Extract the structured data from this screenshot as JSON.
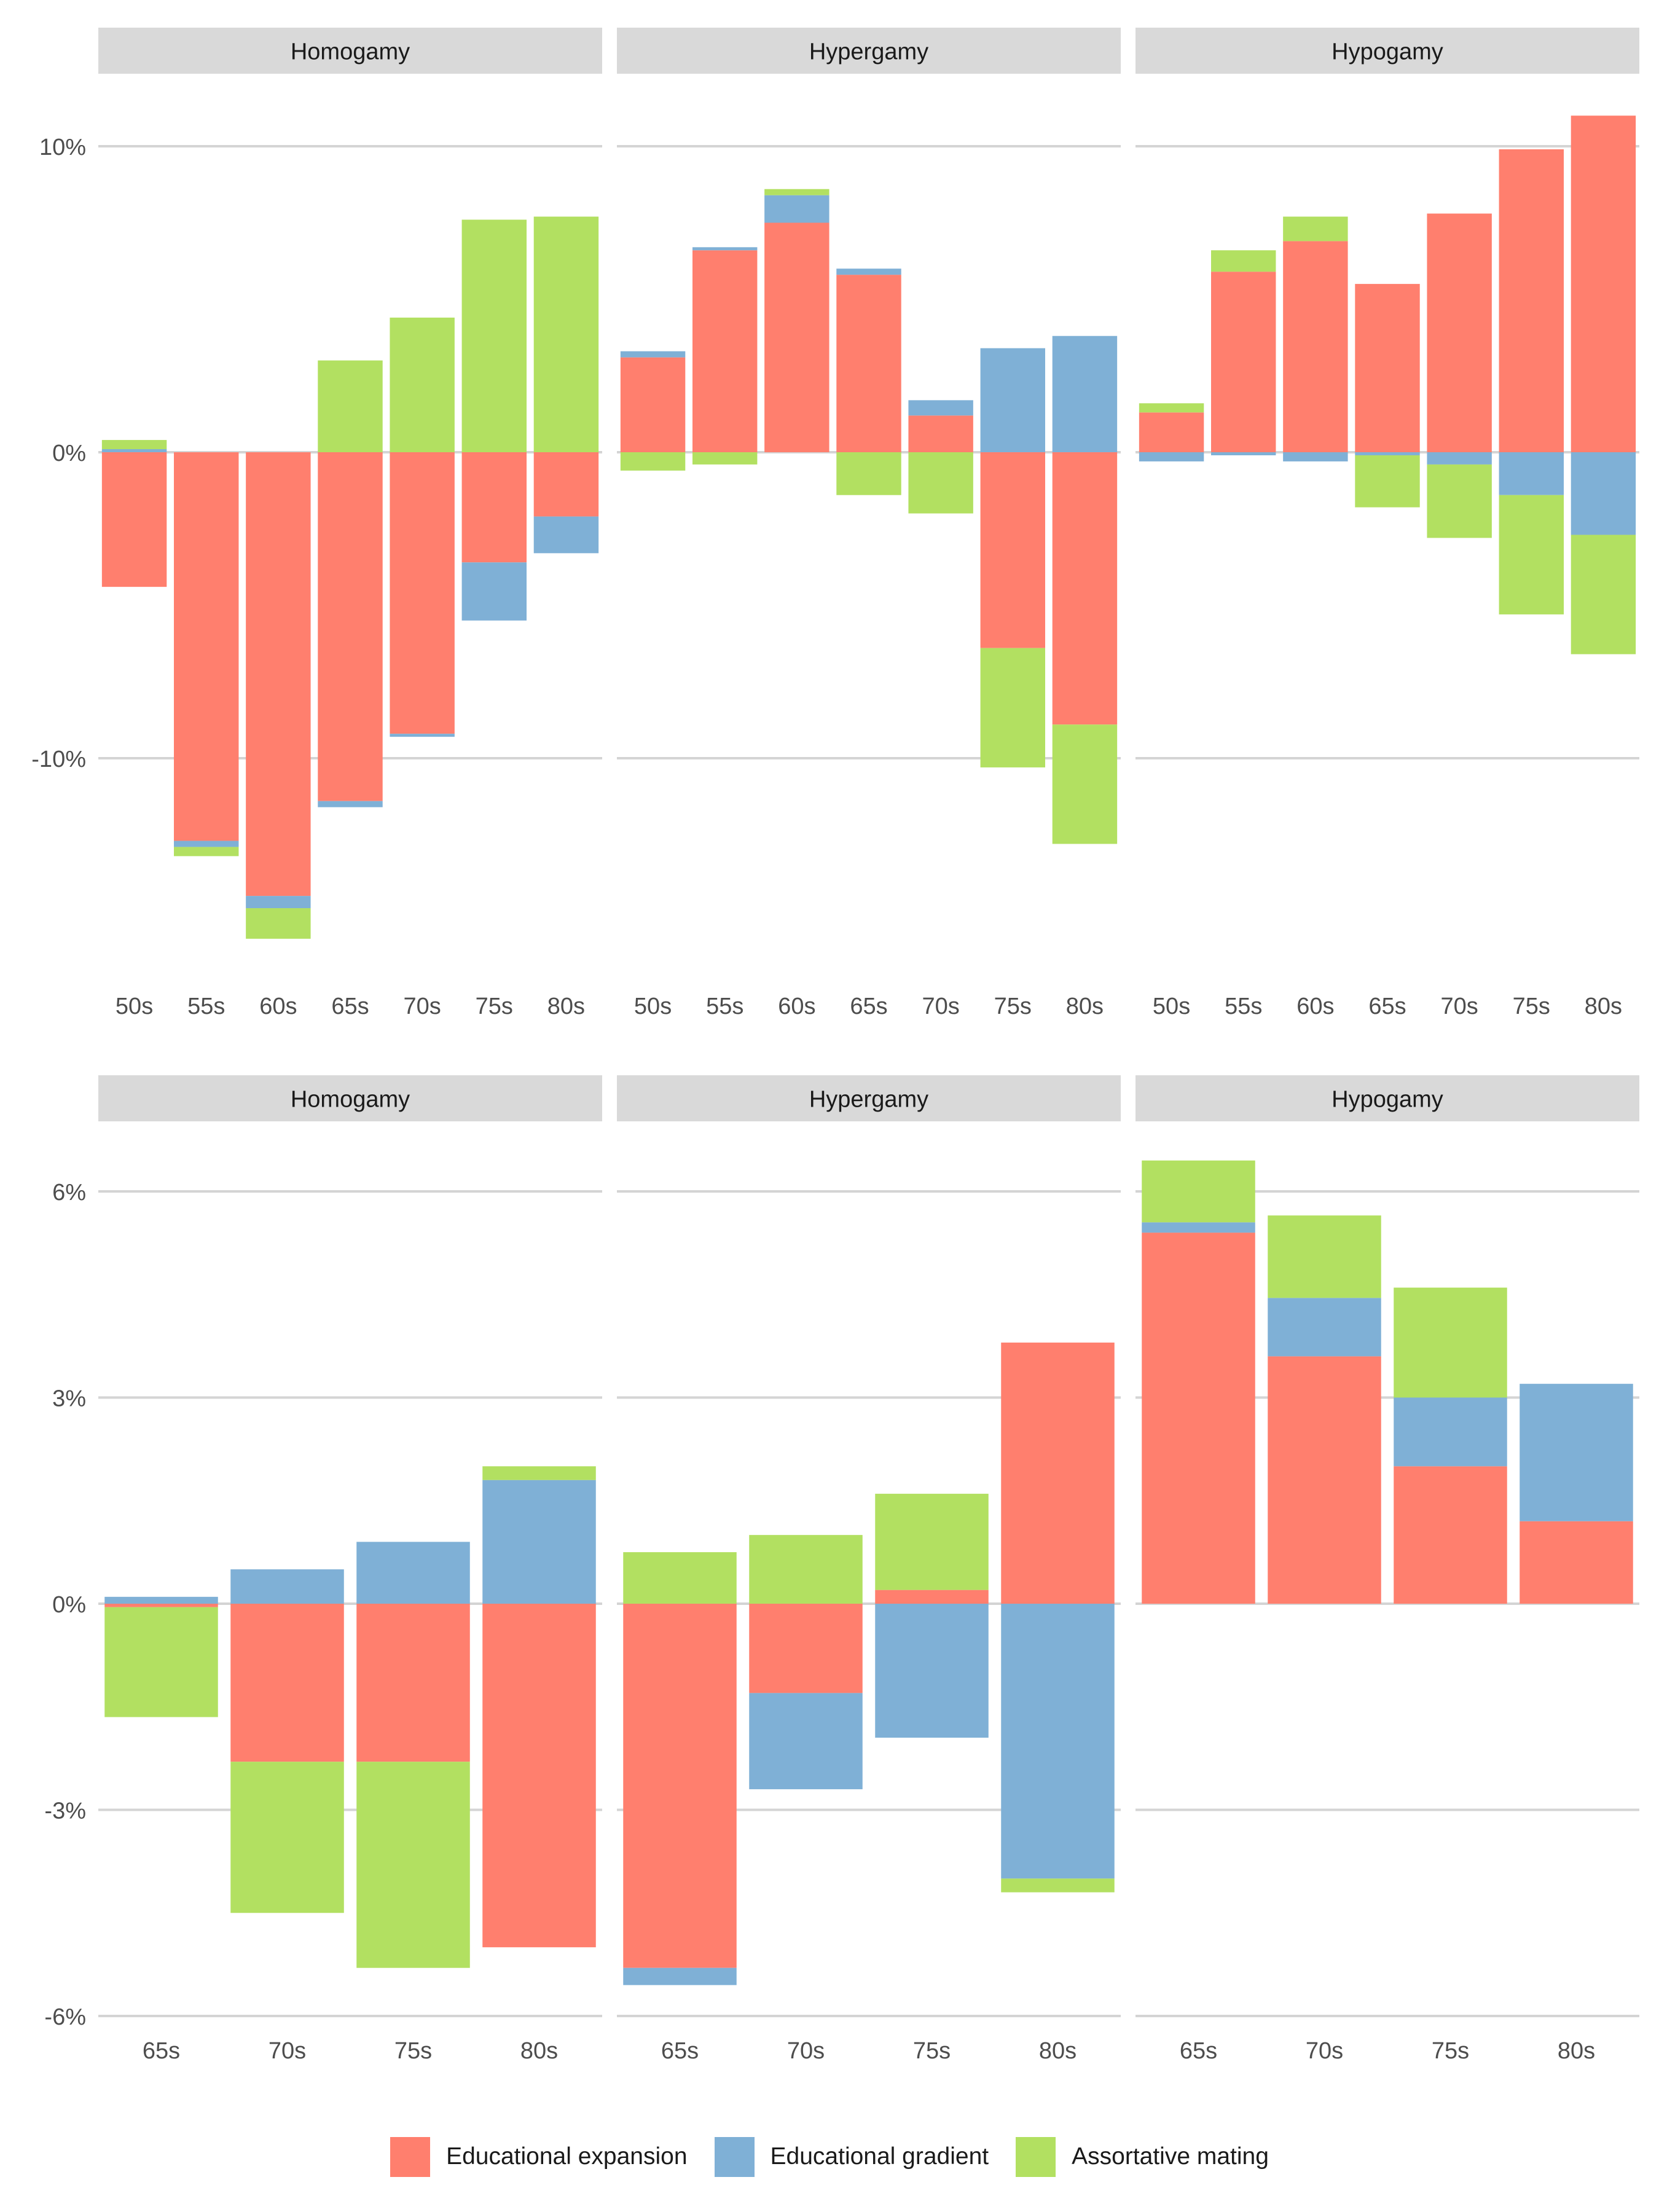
{
  "legend": {
    "items": [
      {
        "label": "Educational expansion",
        "color": "#FF7F6E"
      },
      {
        "label": "Educational gradient",
        "color": "#7FB0D6"
      },
      {
        "label": "Assortative mating",
        "color": "#B2E061"
      }
    ]
  },
  "chart_data": [
    {
      "type": "bar",
      "stacked": true,
      "facet": "top-row",
      "panels": [
        "Homogamy",
        "Hypergamy",
        "Hypogamy"
      ],
      "categories": [
        "50s",
        "55s",
        "60s",
        "65s",
        "70s",
        "75s",
        "80s"
      ],
      "yticks": [
        10,
        0,
        -10
      ],
      "ytick_labels": [
        "10%",
        "0%",
        "-10%"
      ],
      "ylim": [
        -17,
        12.5
      ],
      "unit": "%",
      "grid": true,
      "series_names": [
        "Educational expansion",
        "Educational gradient",
        "Assortative mating"
      ],
      "data": {
        "Homogamy": {
          "Educational expansion": [
            -4.4,
            -12.7,
            -14.5,
            -11.4,
            -9.2,
            -3.6,
            -2.1
          ],
          "Educational gradient": [
            0.1,
            -0.2,
            -0.4,
            -0.2,
            -0.1,
            -1.9,
            -1.2
          ],
          "Assortative mating": [
            0.3,
            -0.3,
            -1.0,
            3.0,
            4.4,
            7.6,
            7.7
          ]
        },
        "Hypergamy": {
          "Educational expansion": [
            3.1,
            6.6,
            7.5,
            5.8,
            1.2,
            -6.4,
            -8.9
          ],
          "Educational gradient": [
            0.2,
            0.1,
            0.9,
            0.2,
            0.5,
            3.4,
            3.8
          ],
          "Assortative mating": [
            -0.6,
            -0.4,
            0.2,
            -1.4,
            -2.0,
            -3.9,
            -3.9
          ]
        },
        "Hypogamy": {
          "Educational expansion": [
            1.3,
            5.9,
            6.9,
            5.5,
            7.8,
            9.9,
            11.0
          ],
          "Educational gradient": [
            -0.3,
            -0.1,
            -0.3,
            -0.1,
            -0.4,
            -1.4,
            -2.7
          ],
          "Assortative mating": [
            0.3,
            0.7,
            0.8,
            -1.7,
            -2.4,
            -3.9,
            -3.9
          ]
        }
      }
    },
    {
      "type": "bar",
      "stacked": true,
      "facet": "bottom-row",
      "panels": [
        "Homogamy",
        "Hypergamy",
        "Hypogamy"
      ],
      "categories": [
        "65s",
        "70s",
        "75s",
        "80s"
      ],
      "yticks": [
        6,
        3,
        0,
        -3,
        -6
      ],
      "ytick_labels": [
        "6%",
        "3%",
        "0%",
        "-3%",
        "-6%"
      ],
      "ylim": [
        -6.0,
        6.7
      ],
      "unit": "%",
      "grid": true,
      "series_names": [
        "Educational expansion",
        "Educational gradient",
        "Assortative mating"
      ],
      "data": {
        "Homogamy": {
          "Educational expansion": [
            -0.05,
            -2.3,
            -2.3,
            -5.0
          ],
          "Educational gradient": [
            0.1,
            0.5,
            0.9,
            1.8
          ],
          "Assortative mating": [
            -1.6,
            -2.2,
            -3.0,
            0.2
          ]
        },
        "Hypergamy": {
          "Educational expansion": [
            -5.3,
            -1.3,
            0.2,
            3.8
          ],
          "Educational gradient": [
            -0.25,
            -1.4,
            -1.95,
            -4.0
          ],
          "Assortative mating": [
            0.75,
            1.0,
            1.4,
            -0.2
          ]
        },
        "Hypogamy": {
          "Educational expansion": [
            5.4,
            3.6,
            2.0,
            1.2
          ],
          "Educational gradient": [
            0.15,
            0.85,
            1.0,
            2.0
          ],
          "Assortative mating": [
            0.9,
            1.2,
            1.6,
            0.0
          ]
        }
      }
    }
  ]
}
